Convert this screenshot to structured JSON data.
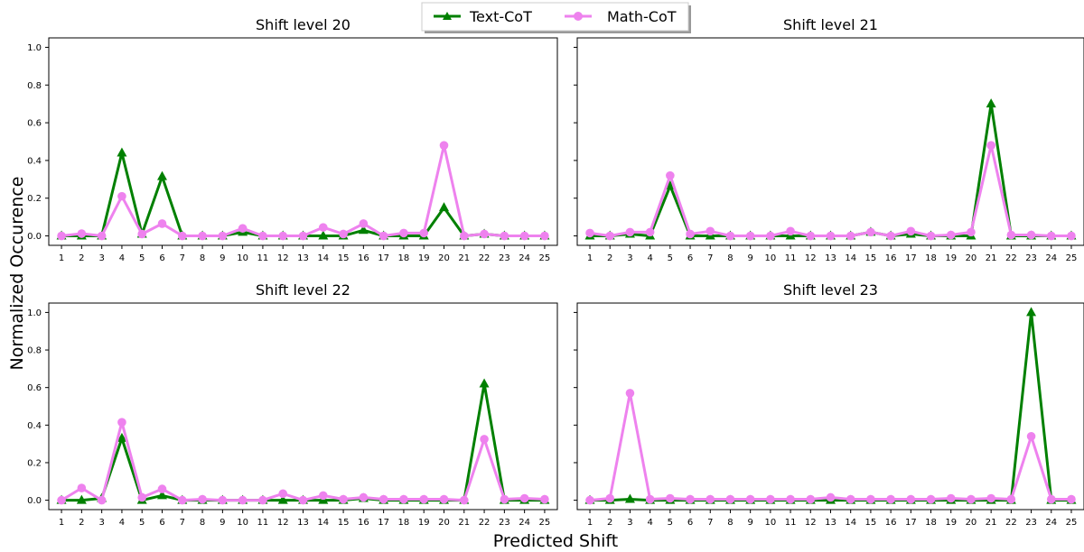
{
  "figure": {
    "xlabel": "Predicted Shift",
    "ylabel": "Normalized Occurence"
  },
  "legend": {
    "placement": "top-center",
    "entries": [
      {
        "name": "Text-CoT",
        "color": "#008000",
        "marker": "triangle"
      },
      {
        "name": "Math-CoT",
        "color": "#ee82ee",
        "marker": "circle"
      }
    ]
  },
  "chart_data": [
    {
      "type": "line",
      "title": "Shift level 20",
      "x": [
        1,
        2,
        3,
        4,
        5,
        6,
        7,
        8,
        9,
        10,
        11,
        12,
        13,
        14,
        15,
        16,
        17,
        18,
        19,
        20,
        21,
        22,
        23,
        24,
        25
      ],
      "ylim": [
        0,
        1.0
      ],
      "yticks": [
        0.0,
        0.2,
        0.4,
        0.6,
        0.8,
        1.0
      ],
      "show_ytick_labels": true,
      "series": [
        {
          "name": "Text-CoT",
          "values": [
            0,
            0,
            0,
            0.44,
            0.01,
            0.315,
            0,
            0,
            0,
            0.02,
            0,
            0,
            0,
            0,
            0,
            0.03,
            0,
            0,
            0,
            0.15,
            0,
            0.01,
            0,
            0,
            0
          ]
        },
        {
          "name": "Math-CoT",
          "values": [
            0,
            0.012,
            0,
            0.21,
            0.01,
            0.065,
            0,
            0,
            0,
            0.04,
            0,
            0,
            0,
            0.045,
            0.01,
            0.065,
            0,
            0.015,
            0.015,
            0.48,
            0,
            0.01,
            0,
            0,
            0
          ]
        }
      ]
    },
    {
      "type": "line",
      "title": "Shift level 21",
      "x": [
        1,
        2,
        3,
        4,
        5,
        6,
        7,
        8,
        9,
        10,
        11,
        12,
        13,
        14,
        15,
        16,
        17,
        18,
        19,
        20,
        21,
        22,
        23,
        24,
        25
      ],
      "ylim": [
        0,
        1.0
      ],
      "yticks": [
        0.0,
        0.2,
        0.4,
        0.6,
        0.8,
        1.0
      ],
      "show_ytick_labels": false,
      "series": [
        {
          "name": "Text-CoT",
          "values": [
            0,
            0,
            0.01,
            0,
            0.265,
            0,
            0,
            0,
            0,
            0,
            0,
            0,
            0,
            0,
            0.02,
            0,
            0.01,
            0,
            0,
            0,
            0.7,
            0,
            0,
            0,
            0
          ]
        },
        {
          "name": "Math-CoT",
          "values": [
            0.015,
            0,
            0.02,
            0.02,
            0.32,
            0.01,
            0.025,
            0,
            0,
            0,
            0.025,
            0,
            0,
            0,
            0.02,
            0,
            0.025,
            0,
            0.005,
            0.02,
            0.48,
            0.005,
            0.005,
            0,
            0
          ]
        }
      ]
    },
    {
      "type": "line",
      "title": "Shift level 22",
      "x": [
        1,
        2,
        3,
        4,
        5,
        6,
        7,
        8,
        9,
        10,
        11,
        12,
        13,
        14,
        15,
        16,
        17,
        18,
        19,
        20,
        21,
        22,
        23,
        24,
        25
      ],
      "ylim": [
        0,
        1.0
      ],
      "yticks": [
        0.0,
        0.2,
        0.4,
        0.6,
        0.8,
        1.0
      ],
      "show_ytick_labels": true,
      "series": [
        {
          "name": "Text-CoT",
          "values": [
            0,
            0,
            0.01,
            0.33,
            0,
            0.025,
            0,
            0,
            0,
            0,
            0,
            0,
            0,
            0,
            0,
            0.01,
            0,
            0,
            0,
            0,
            0,
            0.62,
            0,
            0,
            0
          ]
        },
        {
          "name": "Math-CoT",
          "values": [
            0,
            0.065,
            0,
            0.415,
            0.015,
            0.06,
            0,
            0.005,
            0,
            0,
            0,
            0.035,
            0,
            0.025,
            0.005,
            0.015,
            0.005,
            0.005,
            0.005,
            0.005,
            0,
            0.325,
            0.005,
            0.01,
            0.005
          ]
        }
      ]
    },
    {
      "type": "line",
      "title": "Shift level 23",
      "x": [
        1,
        2,
        3,
        4,
        5,
        6,
        7,
        8,
        9,
        10,
        11,
        12,
        13,
        14,
        15,
        16,
        17,
        18,
        19,
        20,
        21,
        22,
        23,
        24,
        25
      ],
      "ylim": [
        0,
        1.0
      ],
      "yticks": [
        0.0,
        0.2,
        0.4,
        0.6,
        0.8,
        1.0
      ],
      "show_ytick_labels": false,
      "series": [
        {
          "name": "Text-CoT",
          "values": [
            0,
            0,
            0.005,
            0,
            0,
            0,
            0,
            0,
            0,
            0,
            0,
            0,
            0,
            0,
            0,
            0,
            0,
            0,
            0,
            0,
            0,
            0,
            1.0,
            0,
            0
          ]
        },
        {
          "name": "Math-CoT",
          "values": [
            0,
            0.01,
            0.57,
            0.005,
            0.01,
            0.005,
            0.005,
            0.005,
            0.005,
            0.005,
            0.005,
            0.005,
            0.015,
            0.005,
            0.005,
            0.005,
            0.005,
            0.005,
            0.01,
            0.005,
            0.01,
            0.005,
            0.34,
            0.005,
            0.005
          ]
        }
      ]
    }
  ]
}
